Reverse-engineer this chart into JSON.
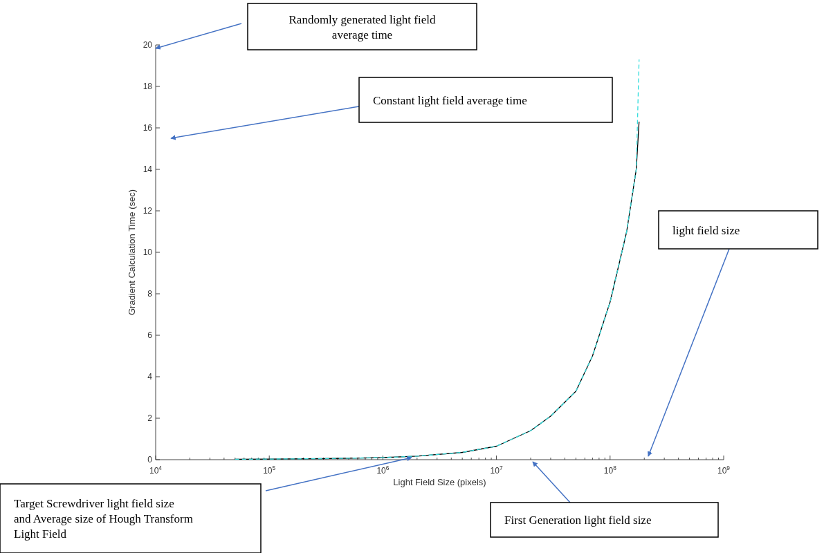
{
  "chart_data": {
    "type": "line",
    "xlabel": "Light Field Size (pixels)",
    "ylabel": "Gradient Calculation Time (sec)",
    "log": "x",
    "xlim": [
      10000,
      1000000000
    ],
    "xticks": [
      {
        "value": 10000,
        "label": "10$^{4}$"
      },
      {
        "value": 100000,
        "label": "10$^{5}$"
      },
      {
        "value": 1000000,
        "label": "10$^{6}$"
      },
      {
        "value": 10000000,
        "label": "10$^{7}$"
      },
      {
        "value": 100000000,
        "label": "10$^{8}$"
      },
      {
        "value": 1000000000,
        "label": "10$^{9}$"
      }
    ],
    "ylim": [
      0,
      20
    ],
    "yticks": [
      0,
      2,
      4,
      6,
      8,
      10,
      12,
      14,
      16,
      18,
      20
    ],
    "grid": false,
    "series": [
      {
        "color": "#000000",
        "line_style": "solid",
        "x": [
          50000,
          100000,
          300000,
          1000000,
          2000000,
          5000000,
          10000000,
          20000000,
          30000000,
          50000000,
          70000000,
          100000000,
          140000000,
          170000000,
          180000000
        ],
        "values": [
          0.02,
          0.03,
          0.05,
          0.1,
          0.17,
          0.35,
          0.65,
          1.4,
          2.1,
          3.3,
          5,
          7.6,
          11,
          14,
          16.3
        ]
      },
      {
        "color": "#33dddd",
        "line_style": "dashed",
        "x": [
          50000,
          100000,
          300000,
          1000000,
          2000000,
          5000000,
          10000000,
          20000000,
          30000000,
          50000000,
          70000000,
          100000000,
          140000000,
          170000000,
          180000000
        ],
        "values": [
          0.02,
          0.03,
          0.05,
          0.1,
          0.17,
          0.35,
          0.65,
          1.4,
          2.1,
          3.3,
          5,
          7.6,
          11,
          14,
          19.3
        ]
      }
    ],
    "annotations": [
      "Randomly generated light field average time",
      "Constant light field average time",
      "light field size",
      "Target Screwdriver light field size and Average size of Hough Transform Light Field",
      "First Generation light field size"
    ]
  }
}
